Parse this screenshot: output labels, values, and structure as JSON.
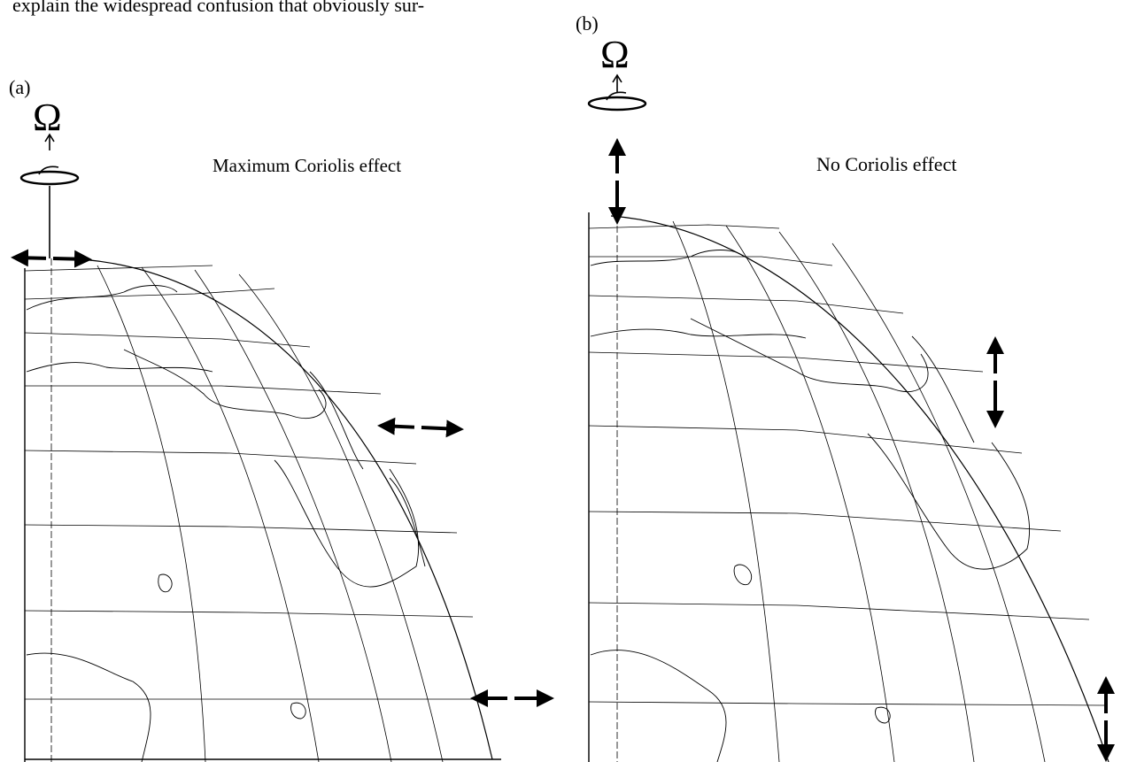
{
  "body_text": "explain the widespread confusion that obviously sur-",
  "panel_a": {
    "label": "(a)",
    "caption": "Maximum Coriolis effect",
    "omega": "Ω"
  },
  "panel_b": {
    "label": "(b)",
    "caption": "No Coriolis effect",
    "omega": "Ω"
  }
}
